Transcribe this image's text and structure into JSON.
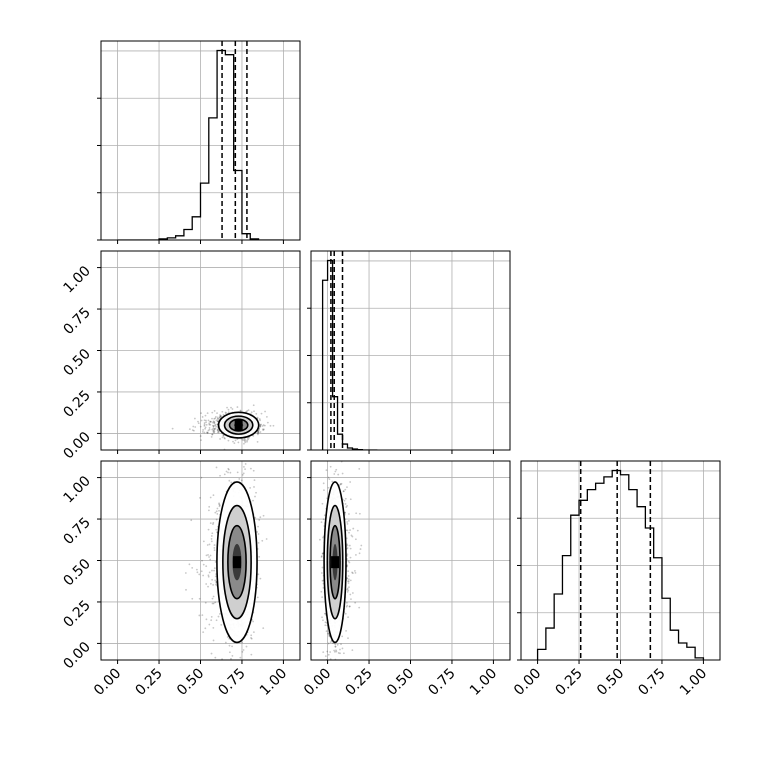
{
  "chart_data": {
    "type": "corner",
    "parameters": [
      "",
      "",
      ""
    ],
    "grid": true,
    "colors": {
      "mark": "#000000",
      "grid": "#b0b0b0",
      "points": "#000000"
    },
    "tick_labels": [
      "0.00",
      "0.25",
      "0.50",
      "0.75",
      "1.00"
    ],
    "axis_range": [
      -0.1,
      1.1
    ],
    "hist_1d": [
      {
        "param": 0,
        "bins": [
          0.0,
          0.05,
          0.1,
          0.15,
          0.2,
          0.25,
          0.3,
          0.35,
          0.4,
          0.45,
          0.5,
          0.55,
          0.6,
          0.65,
          0.7,
          0.75,
          0.8,
          0.85,
          0.9,
          0.95,
          1.0
        ],
        "counts": [
          0,
          0,
          0,
          0,
          0,
          0.005,
          0.01,
          0.02,
          0.05,
          0.11,
          0.27,
          0.58,
          0.9,
          0.88,
          0.33,
          0.03,
          0.005,
          0,
          0,
          0
        ],
        "quantiles": [
          0.63,
          0.71,
          0.78
        ]
      },
      {
        "param": 1,
        "bins": [
          -0.03,
          0.0,
          0.03,
          0.06,
          0.09,
          0.12,
          0.15,
          0.18,
          0.21,
          0.24,
          0.27,
          0.3
        ],
        "counts": [
          0.86,
          0.96,
          0.27,
          0.08,
          0.03,
          0.01,
          0.005,
          0.002,
          0,
          0,
          0
        ],
        "quantiles": [
          0.02,
          0.04,
          0.09
        ]
      },
      {
        "param": 2,
        "bins": [
          0.0,
          0.05,
          0.1,
          0.15,
          0.2,
          0.25,
          0.3,
          0.35,
          0.4,
          0.45,
          0.5,
          0.55,
          0.6,
          0.65,
          0.7,
          0.75,
          0.8,
          0.85,
          0.9,
          0.95,
          1.0
        ],
        "counts": [
          0.05,
          0.15,
          0.31,
          0.49,
          0.68,
          0.75,
          0.8,
          0.83,
          0.86,
          0.89,
          0.87,
          0.8,
          0.72,
          0.62,
          0.48,
          0.29,
          0.14,
          0.08,
          0.06,
          0.01
        ],
        "quantiles": [
          0.26,
          0.48,
          0.68
        ]
      }
    ],
    "hist_2d": [
      {
        "x_param": 0,
        "y_param": 1,
        "center": [
          0.73,
          0.05
        ],
        "sigma": [
          0.055,
          0.035
        ],
        "correlation": 0.0,
        "skew_x": -1.5
      },
      {
        "x_param": 0,
        "y_param": 2,
        "center": [
          0.72,
          0.49
        ],
        "sigma": [
          0.055,
          0.22
        ],
        "correlation": 0.0,
        "skew_x": -0.8
      },
      {
        "x_param": 1,
        "y_param": 2,
        "center": [
          0.045,
          0.49
        ],
        "sigma": [
          0.03,
          0.22
        ],
        "correlation": 0.0,
        "skew_x": 1.0
      }
    ]
  }
}
